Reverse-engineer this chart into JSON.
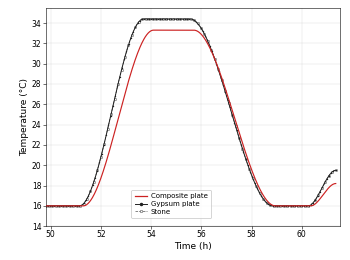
{
  "title": "",
  "xlabel": "Time (h)",
  "ylabel": "Temperature (°C)",
  "xlim": [
    49.8,
    61.5
  ],
  "ylim": [
    14.0,
    35.5
  ],
  "xticks": [
    50,
    52,
    54,
    56,
    58,
    60
  ],
  "yticks": [
    14,
    16,
    18,
    20,
    22,
    24,
    26,
    28,
    30,
    32,
    34
  ],
  "legend_labels": [
    "Composite plate",
    "Gypsum plate",
    "Stone"
  ],
  "background_color": "#ffffff",
  "tick_fontsize": 5.5,
  "label_fontsize": 6.5,
  "legend_fontsize": 5.0,
  "gypsum_rise_start": 51.15,
  "gypsum_rise_end": 53.7,
  "gypsum_flat_end": 55.55,
  "gypsum_fall_end": 58.85,
  "gypsum_rise2_start": 60.25,
  "gypsum_base": 16.0,
  "gypsum_peak": 34.4,
  "gypsum_peak2": 3.5,
  "composite_rise_start": 51.3,
  "composite_rise_end": 54.1,
  "composite_flat_end": 55.7,
  "composite_fall_end": 58.95,
  "composite_rise2_start": 60.35,
  "composite_base": 16.0,
  "composite_peak": 33.3,
  "composite_peak2": 2.2
}
